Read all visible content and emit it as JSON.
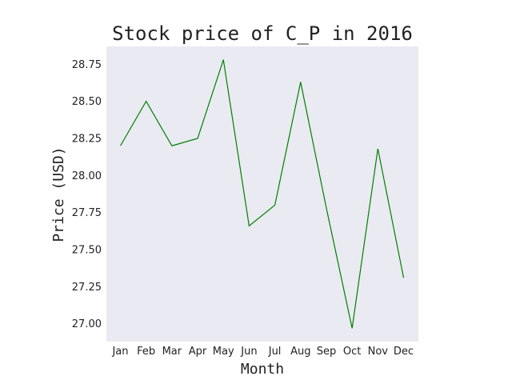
{
  "chart_data": {
    "type": "line",
    "title": "Stock price of C_P in 2016",
    "xlabel": "Month",
    "ylabel": "Price (USD)",
    "categories": [
      "Jan",
      "Feb",
      "Mar",
      "Apr",
      "May",
      "Jun",
      "Jul",
      "Aug",
      "Sep",
      "Oct",
      "Nov",
      "Dec"
    ],
    "series": [
      {
        "values": [
          28.2,
          28.5,
          28.2,
          28.25,
          28.78,
          27.66,
          27.8,
          28.63,
          27.78,
          26.97,
          28.18,
          27.31
        ],
        "color": "#008000"
      }
    ],
    "yticks": [
      "27.00",
      "27.25",
      "27.50",
      "27.75",
      "28.00",
      "28.25",
      "28.50",
      "28.75"
    ],
    "ylim": [
      26.88,
      28.87
    ],
    "grid": false,
    "background_color": "#eaeaf2"
  }
}
